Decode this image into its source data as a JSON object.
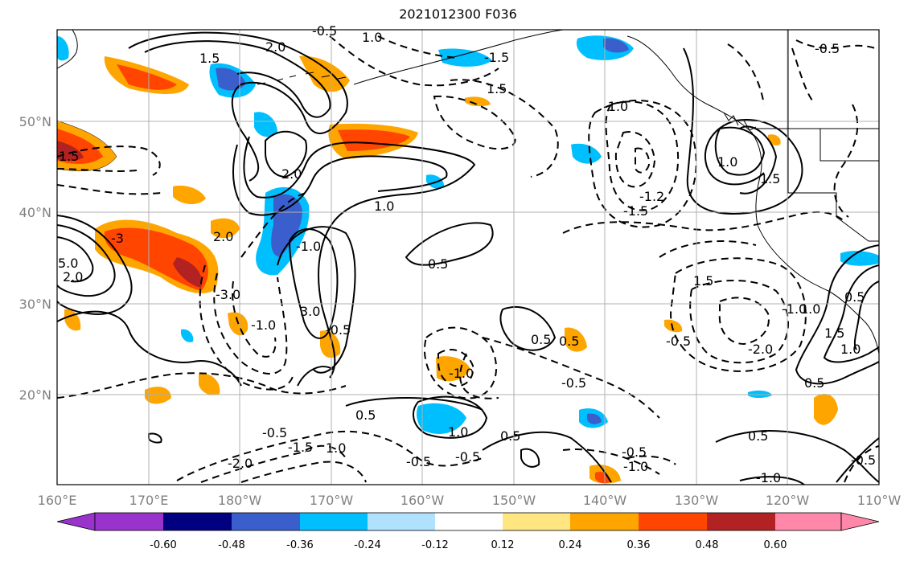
{
  "title": "2021012300 F036",
  "map": {
    "x_ticks": [
      "160°E",
      "170°E",
      "180°W",
      "170°W",
      "160°W",
      "150°W",
      "140°W",
      "130°W",
      "120°W",
      "110°W"
    ],
    "y_ticks": [
      "50°N",
      "40°N",
      "30°N",
      "20°N"
    ],
    "lon_range": [
      160,
      250
    ],
    "lat_range": [
      10,
      60
    ],
    "gridlines": true
  },
  "colorbar": {
    "ticks": [
      "-0.60",
      "-0.48",
      "-0.36",
      "-0.24",
      "-0.12",
      "0.12",
      "0.24",
      "0.36",
      "0.48",
      "0.60"
    ],
    "colors": [
      "#9933cc",
      "#000080",
      "#3a5fcd",
      "#00bfff",
      "#b0e2ff",
      "#ffffff",
      "#ffe680",
      "#ffa500",
      "#ff4500",
      "#b22222",
      "#ff88aa"
    ],
    "extend": "both"
  },
  "contour_labels": [
    "-0.5",
    "1.0",
    "2.0",
    "1.5",
    "1.5",
    "-1.5",
    "-1.0",
    "1.0",
    "1.5",
    "2.0",
    "1.0",
    "-1.5",
    "-1.2",
    "-0.5",
    "0.5",
    "-3.0",
    "3.0",
    "-1.0",
    "-1.0",
    "2.0",
    "0.5",
    "-0.5",
    "-1.0",
    "0.5",
    "-0.5",
    "-1.0",
    "-2.0",
    "1.5",
    "-0.5",
    "0.5",
    "1.0",
    "-0.5",
    "0.5",
    "-0.5",
    "-1.5",
    "-2.0",
    "1.0",
    "-1.0",
    "-0.5",
    "-0.5",
    "-1.0",
    "0.5",
    "1.0",
    "-0.5",
    "0.5",
    "1.5",
    "1.0",
    "1.5",
    "0.5",
    "5.0",
    "2.0",
    "-3"
  ],
  "colors": {
    "contour": "#000000",
    "grid": "#b0b0b0",
    "coast": "#000000"
  }
}
